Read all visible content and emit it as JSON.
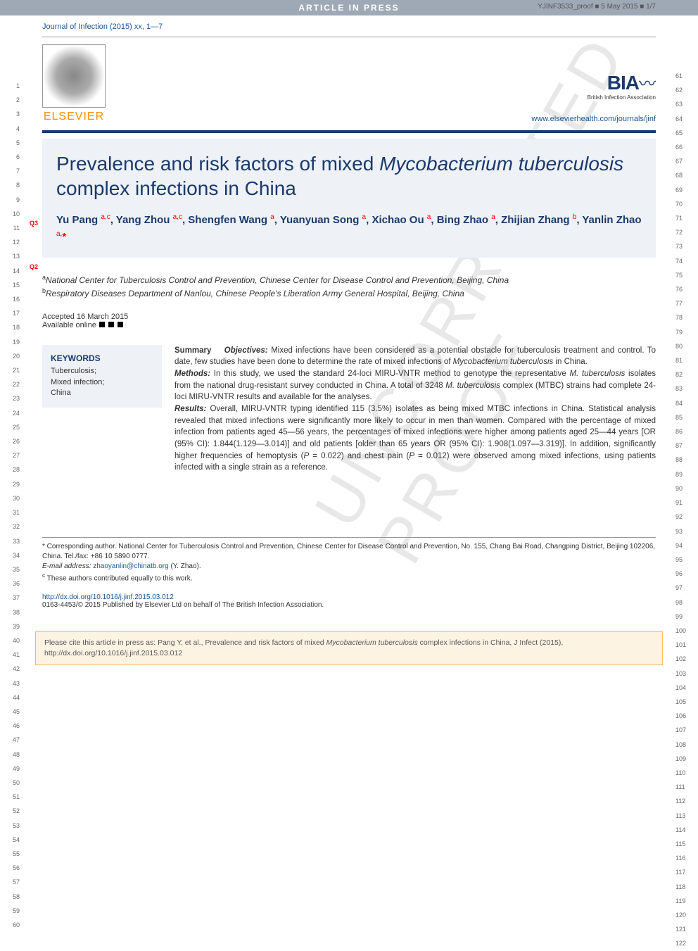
{
  "header": {
    "press_label": "ARTICLE IN PRESS",
    "proof_ref": "YJINF3533_proof ■ 5 May 2015 ■ 1/7"
  },
  "journal_ref": "Journal of Infection (2015) xx, 1—7",
  "publisher": {
    "name": "ELSEVIER",
    "bia_name": "BIA",
    "bia_sub": "British Infection Association",
    "journal_url": "www.elsevierhealth.com/journals/jinf"
  },
  "q_markers": {
    "q3": "Q3",
    "q2": "Q2"
  },
  "title": "Prevalence and risk factors of mixed <em>Mycobacterium tuberculosis</em> complex infections in China",
  "authors_html": "Yu Pang <sup>a,c</sup>, Yang Zhou <sup>a,c</sup>, Shengfen Wang <sup>a</sup>, Yuanyuan Song <sup>a</sup>, Xichao Ou <sup>a</sup>, Bing Zhao <sup>a</sup>, Zhijian Zhang <sup>b</sup>, Yanlin Zhao <sup>a,</sup><span class='star'>*</span>",
  "affiliations": {
    "a": "National Center for Tuberculosis Control and Prevention, Chinese Center for Disease Control and Prevention, Beijing, China",
    "b": "Respiratory Diseases Department of Nanlou, Chinese People's Liberation Army General Hospital, Beijing, China"
  },
  "dates": {
    "accepted": "Accepted 16 March 2015",
    "available": "Available online"
  },
  "keywords": {
    "heading": "KEYWORDS",
    "items": "Tuberculosis;\nMixed infection;\nChina"
  },
  "summary": {
    "label": "Summary",
    "objectives_label": "Objectives:",
    "objectives": "Mixed infections have been considered as a potential obstacle for tuberculosis treatment and control. To date, few studies have been done to determine the rate of mixed infections of Mycobacterium tuberculosis in China.",
    "methods_label": "Methods:",
    "methods": "In this study, we used the standard 24-loci MIRU-VNTR method to genotype the representative M. tuberculosis isolates from the national drug-resistant survey conducted in China. A total of 3248 M. tuberculosis complex (MTBC) strains had complete 24-loci MIRU-VNTR results and available for the analyses.",
    "results_label": "Results:",
    "results": "Overall, MIRU-VNTR typing identified 115 (3.5%) isolates as being mixed MTBC infections in China. Statistical analysis revealed that mixed infections were significantly more likely to occur in men than women. Compared with the percentage of mixed infection from patients aged 45—56 years, the percentages of mixed infections were higher among patients aged 25—44 years [OR (95% CI): 1.844(1.129—3.014)] and old patients [older than 65 years OR (95% CI): 1.908(1.097—3.319)]. In addition, significantly higher frequencies of hemoptysis (P = 0.022) and chest pain (P = 0.012) were observed among mixed infections, using patients infected with a single strain as a reference."
  },
  "footnotes": {
    "corresponding": "* Corresponding author. National Center for Tuberculosis Control and Prevention, Chinese Center for Disease Control and Prevention, No. 155, Chang Bai Road, Changping District, Beijing 102206, China. Tel./fax: +86 10 5890 0777.",
    "email_label": "E-mail address:",
    "email": "zhaoyanlin@chinatb.org",
    "email_name": "(Y. Zhao).",
    "equal": "These authors contributed equally to this work."
  },
  "doi": {
    "url": "http://dx.doi.org/10.1016/j.jinf.2015.03.012",
    "copyright": "0163-4453/© 2015 Published by Elsevier Ltd on behalf of The British Infection Association."
  },
  "cite_box": "Please cite this article in press as: Pang Y, et al., Prevalence and risk factors of mixed Mycobacterium tuberculosis complex infections in China, J Infect (2015), http://dx.doi.org/10.1016/j.jinf.2015.03.012",
  "watermark": "UNCORRECTED PROOF",
  "line_numbers": {
    "left_start": 1,
    "left_end": 60,
    "right_start": 61,
    "right_end": 122
  }
}
